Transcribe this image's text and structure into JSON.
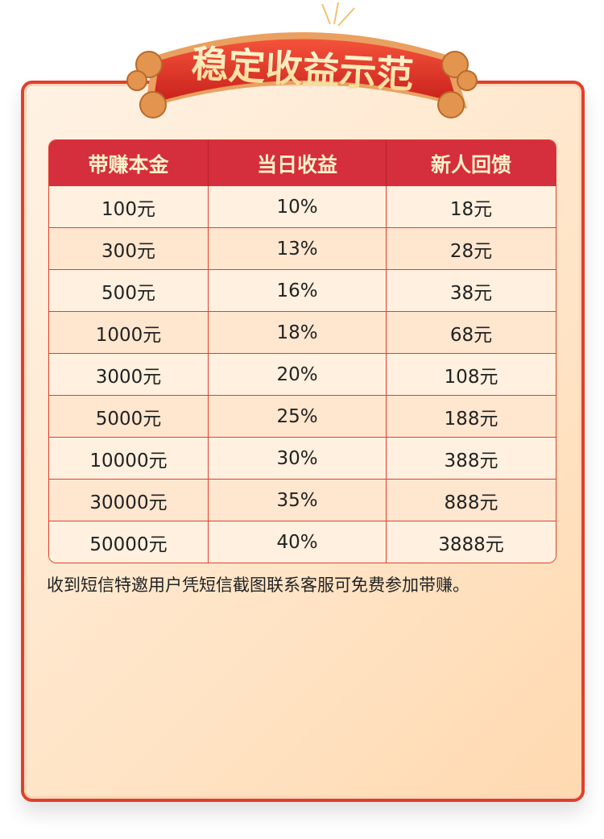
{
  "banner": {
    "title": "稳定收益示范"
  },
  "table": {
    "headers": [
      "带赚本金",
      "当日收益",
      "新人回馈"
    ],
    "rows": [
      [
        "100元",
        "10%",
        "18元"
      ],
      [
        "300元",
        "13%",
        "28元"
      ],
      [
        "500元",
        "16%",
        "38元"
      ],
      [
        "1000元",
        "18%",
        "68元"
      ],
      [
        "3000元",
        "20%",
        "108元"
      ],
      [
        "5000元",
        "25%",
        "188元"
      ],
      [
        "10000元",
        "30%",
        "388元"
      ],
      [
        "30000元",
        "35%",
        "888元"
      ],
      [
        "50000元",
        "40%",
        "3888元"
      ]
    ]
  },
  "note": "收到短信特邀用户凭短信截图联系客服可免费参加带赚。",
  "colors": {
    "accent": "#d52e3c",
    "border": "#e0402c",
    "title_gold": "#fff2c8"
  }
}
